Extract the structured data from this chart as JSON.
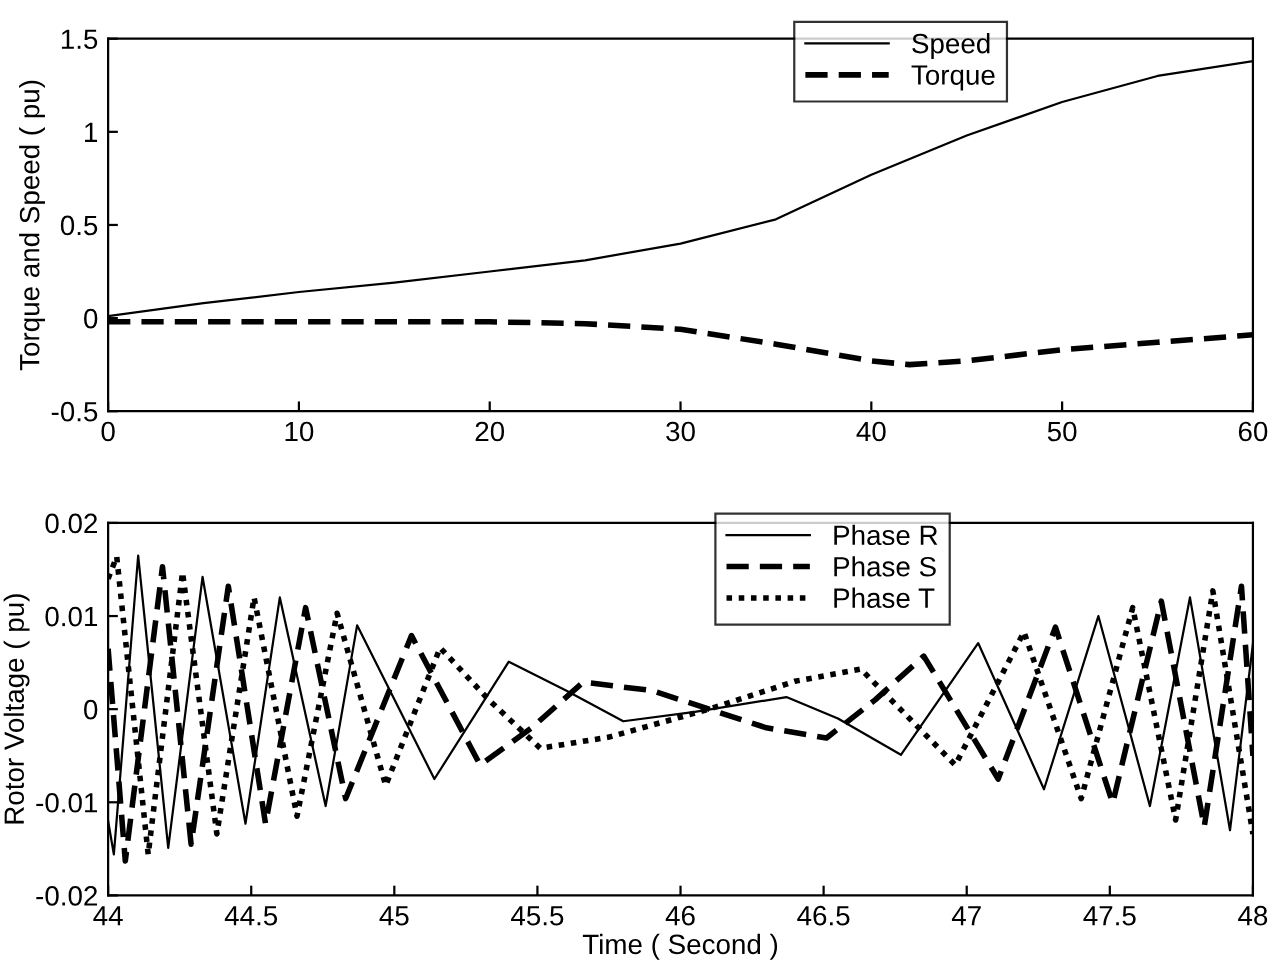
{
  "chart_data": [
    {
      "type": "line",
      "ylabel": "Torque and Speed ( pu)",
      "xlim": [
        0,
        60
      ],
      "ylim": [
        -0.5,
        1.5
      ],
      "xticks": [
        0,
        10,
        20,
        30,
        40,
        50,
        60
      ],
      "yticks": [
        -0.5,
        0,
        0.5,
        1,
        1.5
      ],
      "grid": false,
      "legend": "top right",
      "marker": "none",
      "series": [
        {
          "name": "Speed",
          "color": "#000000",
          "line_style": "solid",
          "x": [
            0,
            5,
            10,
            15,
            20,
            25,
            30,
            35,
            40,
            45,
            50,
            55,
            60
          ],
          "values": [
            0.01,
            0.08,
            0.14,
            0.19,
            0.25,
            0.31,
            0.4,
            0.53,
            0.77,
            0.98,
            1.16,
            1.3,
            1.38
          ]
        },
        {
          "name": "Torque",
          "color": "#000000",
          "line_style": "dashed",
          "x": [
            0,
            10,
            20,
            25,
            30,
            35,
            40,
            42,
            45,
            50,
            55,
            60
          ],
          "values": [
            -0.02,
            -0.02,
            -0.02,
            -0.03,
            -0.06,
            -0.14,
            -0.23,
            -0.25,
            -0.23,
            -0.17,
            -0.13,
            -0.09
          ]
        }
      ]
    },
    {
      "type": "line",
      "xlabel": "Time ( Second )",
      "ylabel": "Rotor Voltage ( pu)",
      "xlim": [
        44,
        48
      ],
      "ylim": [
        -0.02,
        0.02
      ],
      "xticks": [
        44,
        44.5,
        45,
        45.5,
        46,
        46.5,
        47,
        47.5,
        48
      ],
      "yticks": [
        -0.02,
        -0.01,
        0,
        0.01,
        0.02
      ],
      "grid": false,
      "legend": "top right",
      "marker": "none",
      "series": [
        {
          "name": "Phase R",
          "color": "#000000",
          "line_style": "solid",
          "x": [
            44,
            44.02,
            44.105,
            44.21,
            44.33,
            44.48,
            44.6,
            44.76,
            44.87,
            45.14,
            45.4,
            45.6,
            45.8,
            46.05,
            46.37,
            46.55,
            46.77,
            47.04,
            47.27,
            47.46,
            47.64,
            47.78,
            47.92,
            48
          ],
          "values": [
            -0.012,
            -0.0156,
            0.0165,
            -0.0149,
            0.0142,
            -0.0123,
            0.012,
            -0.0104,
            0.009,
            -0.0075,
            0.0051,
            0.002,
            -0.0013,
            -0.0003,
            0.0013,
            -0.001,
            -0.0049,
            0.0071,
            -0.0086,
            0.01,
            -0.0104,
            0.012,
            -0.013,
            0.007
          ]
        },
        {
          "name": "Phase S",
          "color": "#000000",
          "line_style": "dashed",
          "x": [
            44,
            44.06,
            44.19,
            44.29,
            44.42,
            44.55,
            44.69,
            44.83,
            45.06,
            45.3,
            45.48,
            45.66,
            45.9,
            46.1,
            46.3,
            46.51,
            46.68,
            46.85,
            47.11,
            47.31,
            47.51,
            47.68,
            47.83,
            47.96,
            48
          ],
          "values": [
            0.0065,
            -0.0163,
            0.0153,
            -0.0145,
            0.0132,
            -0.0123,
            0.0109,
            -0.0096,
            0.0079,
            -0.006,
            -0.002,
            0.0029,
            0.002,
            0,
            -0.002,
            -0.0031,
            0.001,
            0.0057,
            -0.0075,
            0.0088,
            -0.0101,
            0.0116,
            -0.0126,
            0.0132,
            -0.005
          ]
        },
        {
          "name": "Phase T",
          "color": "#000000",
          "line_style": "dotted",
          "x": [
            44,
            44.03,
            44.14,
            44.26,
            44.38,
            44.51,
            44.66,
            44.8,
            44.97,
            45.16,
            45.33,
            45.51,
            45.75,
            46.1,
            46.4,
            46.63,
            46.8,
            46.96,
            47.2,
            47.4,
            47.58,
            47.73,
            47.86,
            48
          ],
          "values": [
            0.014,
            0.0164,
            -0.0156,
            0.0147,
            -0.0134,
            0.012,
            -0.0115,
            0.0103,
            -0.0082,
            0.0066,
            0.001,
            -0.0042,
            -0.003,
            0,
            0.003,
            0.0043,
            -0.001,
            -0.006,
            0.0083,
            -0.0096,
            0.0109,
            -0.0119,
            0.0127,
            -0.0134
          ]
        }
      ]
    }
  ]
}
